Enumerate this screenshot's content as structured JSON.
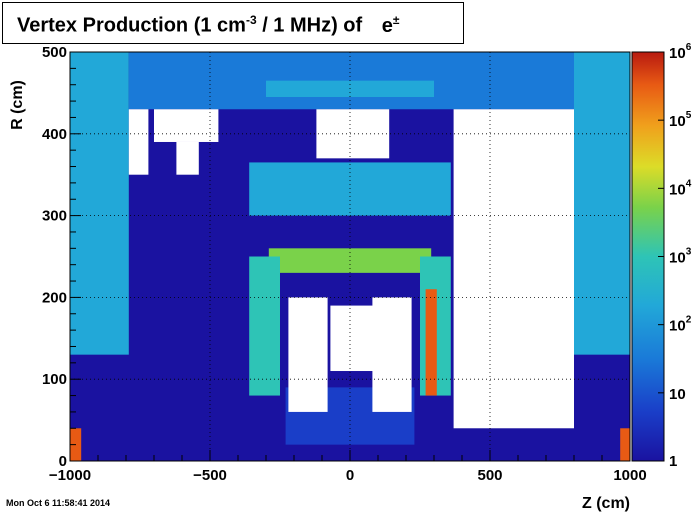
{
  "chart_data": {
    "type": "heatmap",
    "title_parts": {
      "prefix": "Vertex Production (1 cm",
      "exponent": "-3",
      "middle": " / 1 MHz) of",
      "particle": "e",
      "particle_sup": "±"
    },
    "xlabel": "Z (cm)",
    "ylabel": "R (cm)",
    "xlim": [
      -1000,
      1000
    ],
    "ylim": [
      0,
      500
    ],
    "x_ticks": [
      "−1000",
      "−500",
      "0",
      "500",
      "1000"
    ],
    "x_tick_values": [
      -1000,
      -500,
      0,
      500,
      1000
    ],
    "y_ticks": [
      "0",
      "100",
      "200",
      "300",
      "400",
      "500"
    ],
    "y_tick_values": [
      0,
      100,
      200,
      300,
      400,
      500
    ],
    "grid": true,
    "z_scale": "log",
    "zlim": [
      1,
      1000000
    ],
    "colorbar_labels": [
      {
        "base": "1",
        "exp": ""
      },
      {
        "base": "10",
        "exp": ""
      },
      {
        "base": "10",
        "exp": "2"
      },
      {
        "base": "10",
        "exp": "3"
      },
      {
        "base": "10",
        "exp": "4"
      },
      {
        "base": "10",
        "exp": "5"
      },
      {
        "base": "10",
        "exp": "6"
      }
    ],
    "colorbar_values": [
      1,
      10,
      100,
      1000,
      10000,
      100000,
      1000000
    ],
    "regions": [
      {
        "name": "background-low",
        "z0": -1000,
        "z1": 1000,
        "r0": 0,
        "r1": 500,
        "value": 3
      },
      {
        "name": "upper-left-block",
        "z0": -1000,
        "z1": -790,
        "r0": 130,
        "r1": 500,
        "value": 120
      },
      {
        "name": "upper-right-block",
        "z0": 800,
        "z1": 1000,
        "r0": 130,
        "r1": 500,
        "value": 120
      },
      {
        "name": "top-band",
        "z0": -790,
        "z1": 800,
        "r0": 430,
        "r1": 500,
        "value": 60
      },
      {
        "name": "top-strip",
        "z0": -300,
        "z1": 300,
        "r0": 445,
        "r1": 465,
        "value": 150
      },
      {
        "name": "calorimeter-top",
        "z0": -360,
        "z1": 360,
        "r0": 300,
        "r1": 365,
        "value": 250
      },
      {
        "name": "coil-band",
        "z0": -290,
        "z1": 290,
        "r0": 230,
        "r1": 260,
        "value": 3500
      },
      {
        "name": "endcap-left",
        "z0": -360,
        "z1": -250,
        "r0": 80,
        "r1": 250,
        "value": 800
      },
      {
        "name": "endcap-right",
        "z0": 250,
        "z1": 360,
        "r0": 80,
        "r1": 250,
        "value": 800
      },
      {
        "name": "hot-right",
        "z0": 270,
        "z1": 310,
        "r0": 80,
        "r1": 210,
        "value": 200000
      },
      {
        "name": "inner-floor",
        "z0": -230,
        "z1": 230,
        "r0": 20,
        "r1": 90,
        "value": 15
      },
      {
        "name": "hot-corner-left",
        "z0": -1000,
        "z1": -960,
        "r0": 0,
        "r1": 40,
        "value": 100000
      },
      {
        "name": "hot-corner-right",
        "z0": 965,
        "z1": 1000,
        "r0": 0,
        "r1": 40,
        "value": 100000
      }
    ],
    "empty_regions": [
      {
        "z0": -790,
        "z1": -720,
        "r0": 350,
        "r1": 430
      },
      {
        "z0": -220,
        "z1": -80,
        "r0": 60,
        "r1": 200
      },
      {
        "z0": 80,
        "z1": 220,
        "r0": 60,
        "r1": 200
      },
      {
        "z0": 370,
        "z1": 800,
        "r0": 40,
        "r1": 430
      },
      {
        "z0": -700,
        "z1": -470,
        "r0": 390,
        "r1": 430
      },
      {
        "z0": -620,
        "z1": -540,
        "r0": 350,
        "r1": 390
      },
      {
        "z0": -120,
        "z1": 140,
        "r0": 370,
        "r1": 430
      },
      {
        "z0": -70,
        "z1": 100,
        "r0": 110,
        "r1": 190
      }
    ]
  },
  "footer": {
    "timestamp": "Mon Oct  6 11:58:41 2014"
  },
  "colors": {
    "scale": [
      "#1a12a0",
      "#1a3ec8",
      "#1a7ad8",
      "#22a8d8",
      "#2ec4b6",
      "#7ad24a",
      "#dcdc28",
      "#f0a01c",
      "#e85a14",
      "#b81a10"
    ]
  }
}
